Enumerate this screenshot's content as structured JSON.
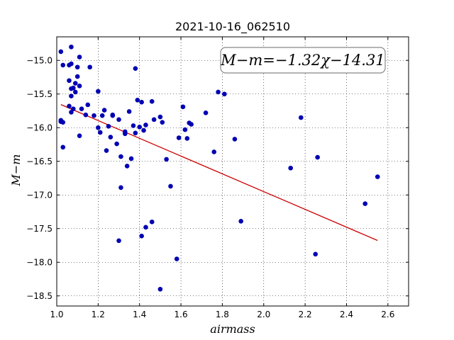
{
  "chart_data": {
    "type": "scatter",
    "title": "2021-10-16_062510",
    "xlabel": "airmass",
    "ylabel": "M−m",
    "xlim": [
      1.0,
      2.7
    ],
    "ylim": [
      -18.65,
      -14.65
    ],
    "y_inverted": true,
    "grid": true,
    "x_ticks": [
      1.0,
      1.2,
      1.4,
      1.6,
      1.8,
      2.0,
      2.2,
      2.4,
      2.6
    ],
    "x_tick_labels": [
      "1.0",
      "1.2",
      "1.4",
      "1.6",
      "1.8",
      "2.0",
      "2.2",
      "2.4",
      "2.6"
    ],
    "y_ticks": [
      -15.0,
      -15.5,
      -16.0,
      -16.5,
      -17.0,
      -17.5,
      -18.0,
      -18.5
    ],
    "y_tick_labels": [
      "−15.0",
      "−15.5",
      "−16.0",
      "−16.5",
      "−17.0",
      "−17.5",
      "−18.0",
      "−18.5"
    ],
    "annotation": "M−m=−1.32χ−14.31",
    "fit": {
      "slope": -1.32,
      "intercept": -14.31,
      "x_range": [
        1.02,
        2.55
      ],
      "color": "#cc0000"
    },
    "point_color": "#0000b3",
    "points": {
      "x": [
        1.02,
        1.03,
        1.06,
        1.07,
        1.11,
        1.16,
        1.02,
        1.03,
        1.02,
        1.03,
        1.06,
        1.07,
        1.08,
        1.1,
        1.09,
        1.1,
        1.11,
        1.07,
        1.06,
        1.07,
        1.07,
        1.08,
        1.09,
        1.12,
        1.11,
        1.14,
        1.15,
        1.18,
        1.2,
        1.21,
        1.22,
        1.23,
        1.26,
        1.27,
        1.25,
        1.27,
        1.24,
        1.29,
        1.3,
        1.31,
        1.33,
        1.34,
        1.36,
        1.35,
        1.37,
        1.38,
        1.39,
        1.38,
        1.4,
        1.41,
        1.42,
        1.43,
        1.46,
        1.47,
        1.5,
        1.51,
        1.41,
        1.43,
        1.46,
        1.53,
        1.55,
        1.58,
        1.5,
        1.61,
        1.62,
        1.64,
        1.65,
        1.63,
        1.59,
        1.72,
        1.76,
        1.78,
        1.81,
        1.86,
        1.89,
        1.2,
        1.3,
        1.31,
        1.33,
        2.13,
        2.18,
        2.25,
        2.26,
        2.49,
        2.55
      ],
      "y": [
        -14.87,
        -15.07,
        -15.07,
        -14.8,
        -14.95,
        -15.1,
        -15.89,
        -15.92,
        -15.91,
        -16.29,
        -15.3,
        -15.05,
        -15.41,
        -15.1,
        -15.34,
        -15.24,
        -15.38,
        -15.53,
        -15.68,
        -15.77,
        -15.42,
        -15.72,
        -15.47,
        -15.72,
        -16.12,
        -15.81,
        -15.66,
        -15.82,
        -15.46,
        -16.07,
        -15.82,
        -15.74,
        -16.14,
        -15.82,
        -15.98,
        -15.81,
        -16.34,
        -16.24,
        -15.88,
        -16.43,
        -16.06,
        -16.57,
        -16.46,
        -15.76,
        -15.97,
        -16.08,
        -15.59,
        -15.12,
        -15.99,
        -15.62,
        -16.04,
        -15.96,
        -15.61,
        -15.88,
        -15.84,
        -15.92,
        -17.61,
        -17.48,
        -17.4,
        -16.47,
        -16.87,
        -17.95,
        -18.4,
        -15.69,
        -16.03,
        -15.93,
        -15.95,
        -16.16,
        -16.15,
        -15.78,
        -16.36,
        -15.47,
        -15.5,
        -16.17,
        -17.39,
        -16.0,
        -17.68,
        -16.89,
        -16.09,
        -16.6,
        -15.85,
        -17.88,
        -16.44,
        -17.13,
        -16.73
      ]
    }
  }
}
